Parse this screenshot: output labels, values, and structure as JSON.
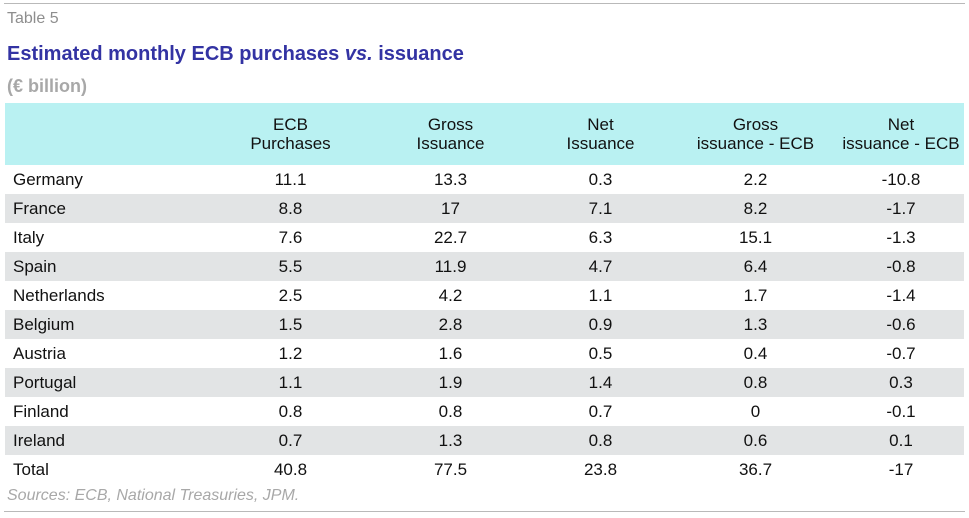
{
  "table_label": "Table 5",
  "title_part1": "Estimated monthly ECB purchases ",
  "title_vs": "vs.",
  "title_part2": " issuance",
  "unit": "(€ billion)",
  "headers": [
    {
      "line1": "",
      "line2": ""
    },
    {
      "line1": "ECB",
      "line2": "Purchases"
    },
    {
      "line1": "Gross",
      "line2": "Issuance"
    },
    {
      "line1": "Net",
      "line2": "Issuance"
    },
    {
      "line1": "Gross",
      "line2": "issuance - ECB"
    },
    {
      "line1": "Net",
      "line2": "issuance - ECB"
    }
  ],
  "rows": [
    [
      "Germany",
      "11.1",
      "13.3",
      "0.3",
      "2.2",
      "-10.8"
    ],
    [
      "France",
      "8.8",
      "17",
      "7.1",
      "8.2",
      "-1.7"
    ],
    [
      "Italy",
      "7.6",
      "22.7",
      "6.3",
      "15.1",
      "-1.3"
    ],
    [
      "Spain",
      "5.5",
      "11.9",
      "4.7",
      "6.4",
      "-0.8"
    ],
    [
      "Netherlands",
      "2.5",
      "4.2",
      "1.1",
      "1.7",
      "-1.4"
    ],
    [
      "Belgium",
      "1.5",
      "2.8",
      "0.9",
      "1.3",
      "-0.6"
    ],
    [
      "Austria",
      "1.2",
      "1.6",
      "0.5",
      "0.4",
      "-0.7"
    ],
    [
      "Portugal",
      "1.1",
      "1.9",
      "1.4",
      "0.8",
      "0.3"
    ],
    [
      "Finland",
      "0.8",
      "0.8",
      "0.7",
      "0",
      "-0.1"
    ],
    [
      "Ireland",
      "0.7",
      "1.3",
      "0.8",
      "0.6",
      "0.1"
    ],
    [
      "Total",
      "40.8",
      "77.5",
      "23.8",
      "36.7",
      "-17"
    ]
  ],
  "source": "Sources: ECB, National Treasuries, JPM.",
  "colors": {
    "header_bg": "#b9f1f2",
    "title": "#3333a3",
    "row_shade": "#e2e4e5"
  }
}
